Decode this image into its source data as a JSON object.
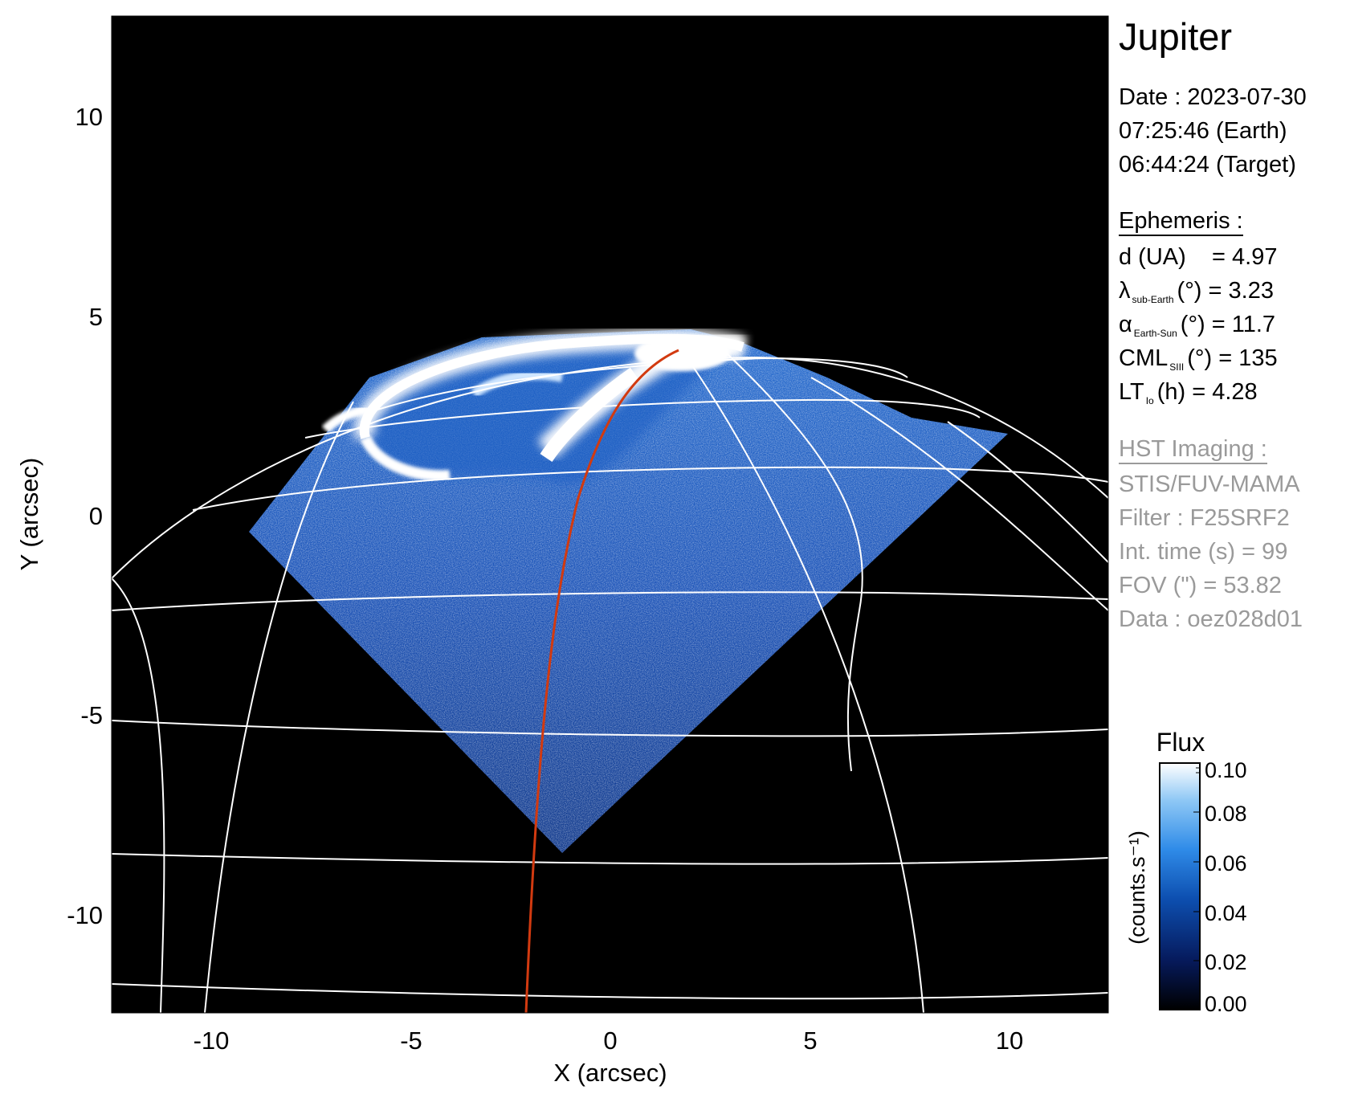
{
  "title": "Jupiter",
  "observation": {
    "date": "Date : 2023-07-30",
    "earth_time": "07:25:46 (Earth)",
    "target_time": "06:44:24 (Target)"
  },
  "ephemeris": {
    "header": "Ephemeris :",
    "distance": {
      "label": "d (UA)",
      "value": "= 4.97"
    },
    "sub_earth_lat": {
      "symbol": "λ",
      "subscript": "sub-Earth",
      "unit": "(°)",
      "value": "= 3.23"
    },
    "phase_angle": {
      "symbol": "α",
      "subscript": "Earth-Sun",
      "unit": "(°)",
      "value": "= 11.7"
    },
    "cml": {
      "symbol": "CML",
      "subscript": "SIII",
      "unit": "(°)",
      "value": "= 135"
    },
    "lt_io": {
      "symbol": "LT",
      "subscript": "Io",
      "unit": "(h)",
      "value": "= 4.28"
    }
  },
  "hst": {
    "header": "HST Imaging :",
    "instrument": "STIS/FUV-MAMA",
    "filter": "Filter : F25SRF2",
    "int_time": "Int. time (s) = 99",
    "fov": "FOV (\") = 53.82",
    "data_id": "Data : oez028d01"
  },
  "axes": {
    "x_label": "X (arcsec)",
    "y_label": "Y (arcsec)",
    "x_ticks": [
      "-10",
      "-5",
      "0",
      "5",
      "10"
    ],
    "y_ticks": [
      "10",
      "5",
      "0",
      "-5",
      "-10"
    ]
  },
  "colorbar": {
    "title": "Flux",
    "unit": "(counts.s⁻¹)",
    "ticks": [
      "0.10",
      "0.08",
      "0.06",
      "0.04",
      "0.02",
      "0.00"
    ]
  },
  "colors": {
    "background": "#000000",
    "grid": "#ffffff",
    "footpath": "#d23a10",
    "colormap": [
      "#000000",
      "#061a5c",
      "#0d4fb0",
      "#2f8be8",
      "#8fc8f5",
      "#ffffff"
    ]
  }
}
